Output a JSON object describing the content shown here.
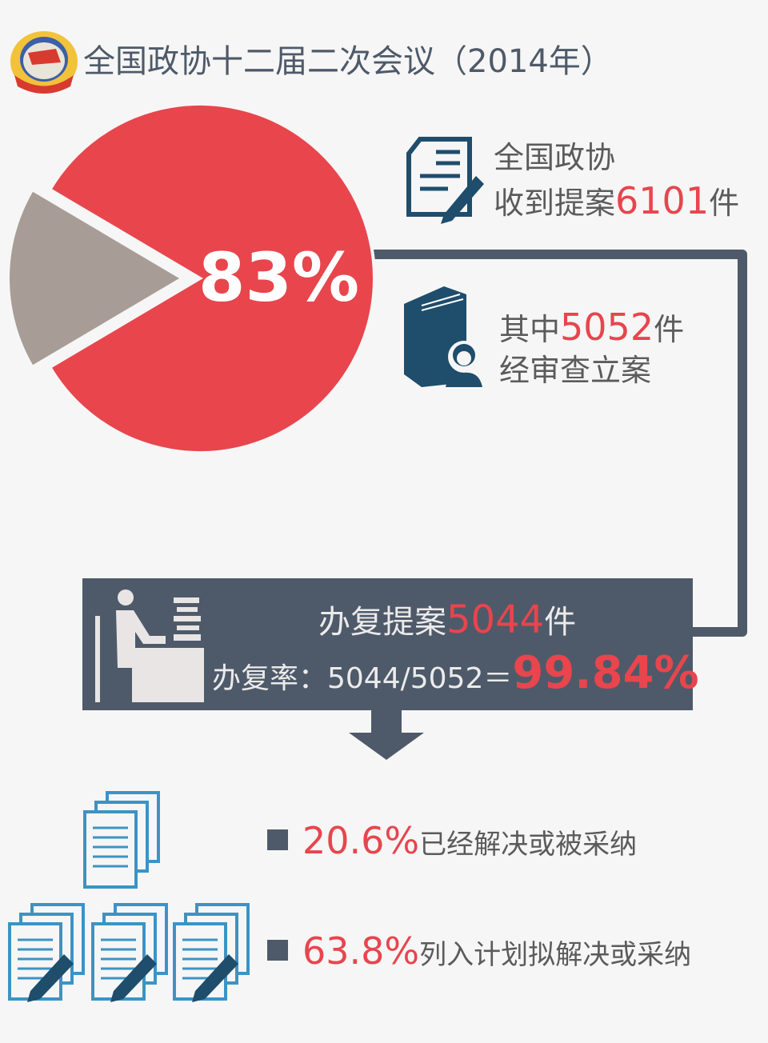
{
  "header": {
    "title": "全国政协十二届二次会议（2014年）",
    "logo_icon": "cppcc-emblem-icon"
  },
  "chart_data": {
    "type": "pie",
    "slices": [
      {
        "label": "经审查立案",
        "value": 83,
        "color": "#e8454d"
      },
      {
        "label": "",
        "value": 17,
        "color": "#a89d96"
      }
    ],
    "center_label": "83%"
  },
  "received": {
    "line1": "全国政协",
    "line2_prefix": "收到提案",
    "count": "6101",
    "unit": "件",
    "icon": "document-pen-icon"
  },
  "filed": {
    "prefix": "其中",
    "count": "5052",
    "unit": "件",
    "line2": "经审查立案",
    "icon": "book-person-icon"
  },
  "replied": {
    "prefix": "办复提案",
    "count": "5044",
    "unit": "件",
    "rate_label": "办复率：5044/5052＝",
    "rate": "99.84%",
    "icon": "desk-worker-icon"
  },
  "results": [
    {
      "percent": "20.6%",
      "label": "已经解决或被采纳"
    },
    {
      "percent": "63.8%",
      "label": "列入计划拟解决或采纳"
    }
  ],
  "colors": {
    "accent": "#e8454d",
    "dark": "#4e5a69",
    "grey": "#a89d96",
    "icon_blue": "#3d93c4",
    "icon_navy": "#1f4d6c"
  }
}
